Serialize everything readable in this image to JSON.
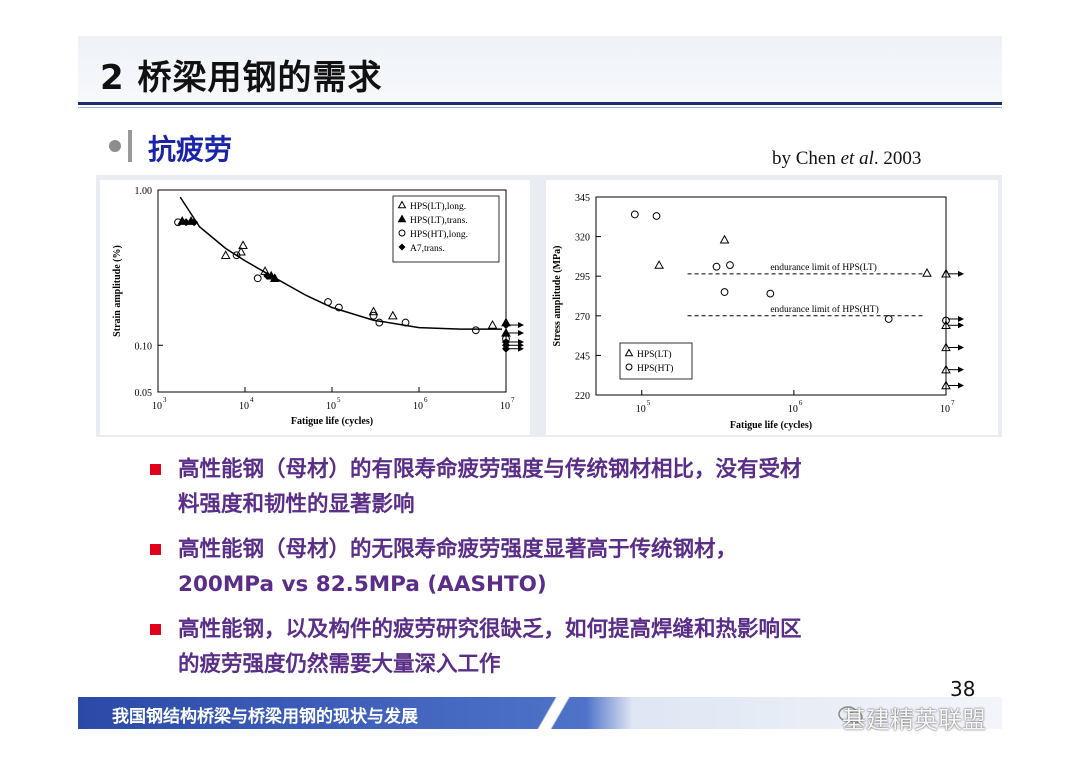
{
  "header": {
    "title": "2  桥梁用钢的需求"
  },
  "section": {
    "title": "抗疲劳",
    "credit_prefix": "by Chen ",
    "credit_italic": "et al",
    "credit_suffix": ". 2003"
  },
  "chart_data": [
    {
      "type": "scatter",
      "xlabel": "Fatigue life (cycles)",
      "ylabel": "Strain amplitude (%)",
      "x_scale": "log",
      "y_scale": "log",
      "xlim": [
        1000,
        10000000
      ],
      "ylim": [
        0.05,
        1.0
      ],
      "ytick_labels": [
        "1.00",
        "0.10",
        "0.05"
      ],
      "ytick_values": [
        1.0,
        0.1,
        0.05
      ],
      "xtick_base": "10",
      "xtick_exps": [
        "3",
        "4",
        "5",
        "6",
        "7"
      ],
      "legend_position": "top-right",
      "series": [
        {
          "name": "HPS(LT),long.",
          "marker": "triangle-open",
          "x": [
            6000,
            9000,
            9500,
            17000,
            300000,
            500000,
            7000000
          ],
          "y": [
            0.38,
            0.4,
            0.44,
            0.3,
            0.165,
            0.155,
            0.135
          ]
        },
        {
          "name": "HPS(LT),trans.",
          "marker": "triangle-filled",
          "x": [
            1900,
            2400,
            20000,
            22000,
            10000000,
            10000000
          ],
          "y": [
            0.63,
            0.63,
            0.28,
            0.27,
            0.14,
            0.12
          ]
        },
        {
          "name": "HPS(HT),long.",
          "marker": "circle-open",
          "x": [
            1700,
            8000,
            14000,
            90000,
            120000,
            300000,
            350000,
            700000,
            4500000,
            10000000
          ],
          "y": [
            0.62,
            0.38,
            0.27,
            0.19,
            0.175,
            0.155,
            0.14,
            0.14,
            0.125,
            0.11
          ]
        },
        {
          "name": "A7,trans.",
          "marker": "diamond-filled",
          "x": [
            2100,
            2600,
            18000,
            10000000,
            10000000,
            10000000,
            10000000
          ],
          "y": [
            0.62,
            0.62,
            0.28,
            0.135,
            0.105,
            0.1,
            0.095
          ]
        }
      ],
      "runout_arrows_y": [
        0.135,
        0.12,
        0.105,
        0.1,
        0.095
      ],
      "fit_curve": {
        "x": [
          1800,
          3000,
          6000,
          10000,
          20000,
          50000,
          100000,
          300000,
          1000000,
          3000000,
          9000000
        ],
        "y": [
          0.9,
          0.58,
          0.42,
          0.35,
          0.28,
          0.21,
          0.175,
          0.145,
          0.13,
          0.127,
          0.127
        ]
      }
    },
    {
      "type": "scatter",
      "xlabel": "Fatigue life (cycles)",
      "ylabel": "Stress amplitude (MPa)",
      "x_scale": "log",
      "xlim": [
        50000,
        10000000
      ],
      "ylim": [
        220,
        345
      ],
      "yticks": [
        220,
        245,
        270,
        295,
        320,
        345
      ],
      "xtick_base": "10",
      "xtick_exps": [
        "5",
        "6",
        "7"
      ],
      "xtick_values": [
        100000,
        1000000,
        10000000
      ],
      "legend_position": "bottom-left",
      "annotations": [
        {
          "text": "endurance limit of HPS(LT)",
          "y": 296.5
        },
        {
          "text": "endurance limit of HPS(HT)",
          "y": 270
        }
      ],
      "series": [
        {
          "name": "HPS(LT)",
          "marker": "triangle-open",
          "x": [
            130000,
            350000,
            7500000,
            10000000,
            10000000,
            10000000,
            10000000,
            10000000,
            10000000
          ],
          "y": [
            302,
            318,
            297,
            296.5,
            264,
            250,
            236,
            226,
            296.5
          ]
        },
        {
          "name": "HPS(HT)",
          "marker": "circle-open",
          "x": [
            90000,
            125000,
            310000,
            350000,
            380000,
            700000,
            4200000,
            10000000
          ],
          "y": [
            334,
            333,
            301,
            285,
            302,
            284,
            268,
            267
          ]
        }
      ],
      "runout_arrows_y": [
        296.5,
        268,
        264,
        250,
        236,
        226
      ]
    }
  ],
  "bullets": [
    {
      "line1": "高性能钢（母材）的有限寿命疲劳强度与传统钢材相比，没有受材",
      "line2": "料强度和韧性的显著影响"
    },
    {
      "line1": "高性能钢（母材）的无限寿命疲劳强度显著高于传统钢材，",
      "line2": "200MPa vs 82.5MPa (AASHTO)"
    },
    {
      "line1": "高性能钢，以及构件的疲劳研究很缺乏，如何提高焊缝和热影响区",
      "line2": "的疲劳强度仍然需要大量深入工作"
    }
  ],
  "page_number": "38",
  "footer": {
    "text": "我国钢结构桥梁与桥梁用钢的现状与发展"
  },
  "watermark": {
    "text": "基建精英联盟"
  }
}
